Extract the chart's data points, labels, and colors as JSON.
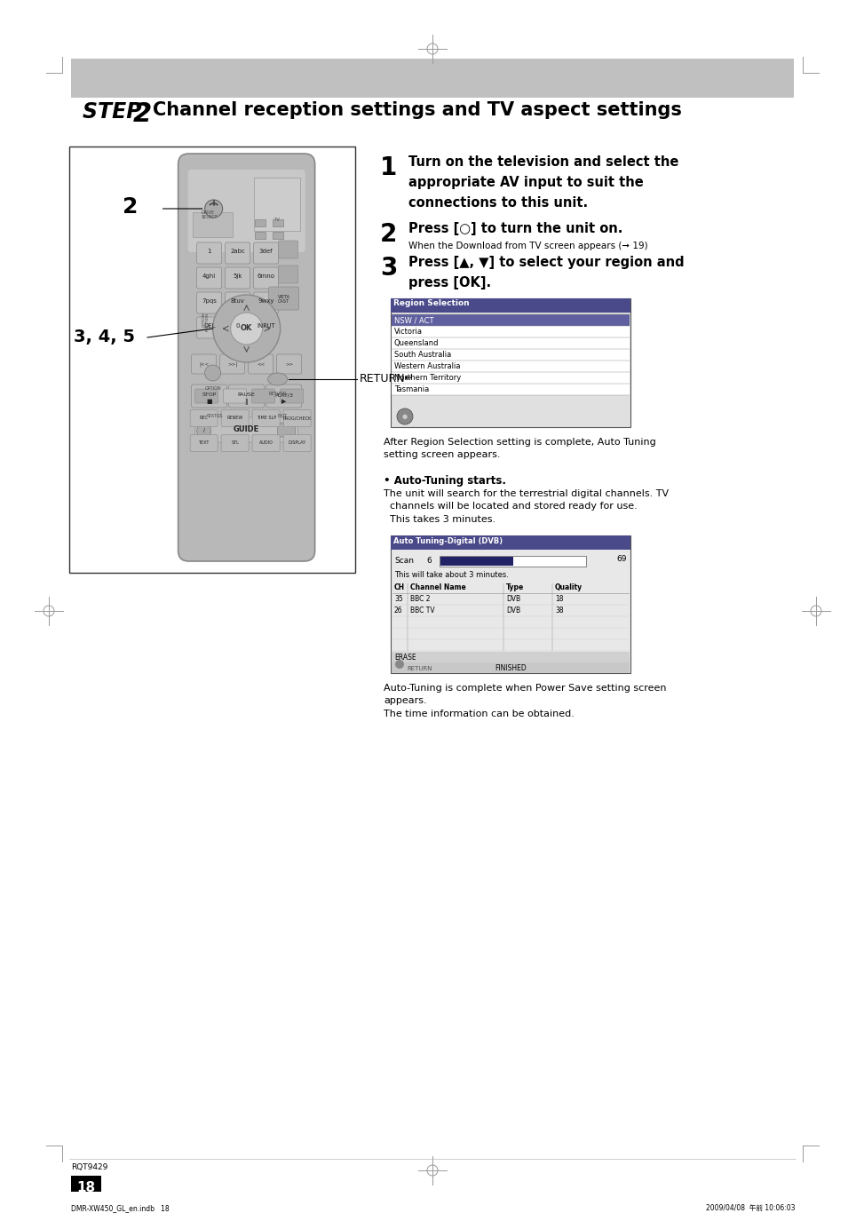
{
  "page_bg": "#ffffff",
  "header_bg": "#c0c0c0",
  "header_text_italic_bold": "STEP 2",
  "header_text_regular": "Channel reception settings and TV aspect settings",
  "step1_num": "1",
  "step1_bold": "Turn on the television and select the\nappropriate AV input to suit the\nconnections to this unit.",
  "step2_num": "2",
  "step2_bold": "Press [○] to turn the unit on.",
  "step2_small": "When the Download from TV screen appears (➞ 19)",
  "step3_num": "3",
  "step3_bold": "Press [▲, ▼] to select your region and\npress [OK].",
  "region_title": "Region Selection",
  "region_items": [
    "NSW / ACT",
    "Victoria",
    "Queensland",
    "South Australia",
    "Western Australia",
    "Northern Territory",
    "Tasmania"
  ],
  "after_region_text": "After Region Selection setting is complete, Auto Tuning\nsetting screen appears.",
  "auto_tuning_bullet": "• Auto-Tuning starts.",
  "auto_tuning_text": "  The unit will search for the terrestrial digital channels. TV\n  channels will be located and stored ready for use.\n  This takes 3 minutes.",
  "auto_tuning_screen_title": "Auto Tuning-Digital (DVB)",
  "auto_tuning_scan_label": "Scan",
  "auto_tuning_scan_val": "6",
  "auto_tuning_progress": "69",
  "auto_tuning_sub": "This will take about 3 minutes.",
  "auto_tuning_cols": [
    "CH",
    "Channel Name",
    "Type",
    "Quality"
  ],
  "auto_tuning_rows": [
    [
      "35",
      "BBC 2",
      "DVB",
      "18"
    ],
    [
      "26",
      "BBC TV",
      "DVB",
      "38"
    ]
  ],
  "after_auto_text": "Auto-Tuning is complete when Power Save setting screen\nappears.\nThe time information can be obtained.",
  "label_2": "2",
  "label_345": "3, 4, 5",
  "label_return": "RETURN↵",
  "footer_left_top": "RQT9429",
  "footer_page": "18",
  "footer_file": "DMR-XW450_GL_en.indb   18",
  "footer_date": "2009/04/08  午前 10:06:03",
  "remote_body_color": "#aaaaaa",
  "remote_border_color": "#888888",
  "remote_btn_color": "#999999",
  "remote_btn_dark": "#777777",
  "remote_box_bg": "#f5f5f5",
  "remote_box_border": "#333333"
}
